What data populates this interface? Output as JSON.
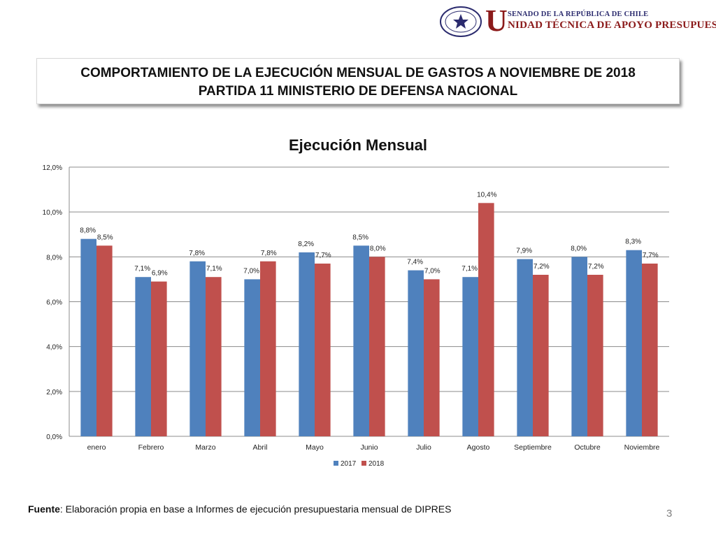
{
  "header": {
    "seal_text": "REPÚBLICA DE CHILE",
    "seal_subtext": "SENADO",
    "brand_initial": "U",
    "brand_top": "SENADO DE LA REPÚBLICA DE CHILE",
    "brand_bottom": "NIDAD TÉCNICA DE APOYO PRESUPUESTARIO"
  },
  "title": {
    "line1": "COMPORTAMIENTO DE LA EJECUCIÓN MENSUAL DE GASTOS A NOVIEMBRE DE 2018",
    "line2": "PARTIDA 11 MINISTERIO DE DEFENSA NACIONAL"
  },
  "chart_data": {
    "type": "bar",
    "title": "Ejecución Mensual",
    "categories": [
      "enero",
      "Febrero",
      "Marzo",
      "Abril",
      "Mayo",
      "Junio",
      "Julio",
      "Agosto",
      "Septiembre",
      "Octubre",
      "Noviembre"
    ],
    "series": [
      {
        "name": "2017",
        "color": "#4f81bd",
        "values": [
          8.8,
          7.1,
          7.8,
          7.0,
          8.2,
          8.5,
          7.4,
          7.1,
          7.9,
          8.0,
          8.3
        ],
        "labels": [
          "8,8%",
          "7,1%",
          "7,8%",
          "7,0%",
          "8,2%",
          "8,5%",
          "7,4%",
          "7,1%",
          "7,9%",
          "8,0%",
          "8,3%"
        ]
      },
      {
        "name": "2018",
        "color": "#c0504d",
        "values": [
          8.5,
          6.9,
          7.1,
          7.8,
          7.7,
          8.0,
          7.0,
          10.4,
          7.2,
          7.2,
          7.7
        ],
        "labels": [
          "8,5%",
          "6,9%",
          "7,1%",
          "7,8%",
          "7,7%",
          "8,0%",
          "7,0%",
          "10,4%",
          "7,2%",
          "7,2%",
          "7,7%"
        ]
      }
    ],
    "ylim": [
      0,
      12
    ],
    "yticks": [
      0,
      2,
      4,
      6,
      8,
      10,
      12
    ],
    "ytick_labels": [
      "0,0%",
      "2,0%",
      "4,0%",
      "6,0%",
      "8,0%",
      "10,0%",
      "12,0%"
    ],
    "grid": true,
    "legend_position": "bottom"
  },
  "footer": {
    "source_label": "Fuente",
    "source_text": ": Elaboración propia en base  a Informes de ejecución presupuestaria mensual de DIPRES"
  },
  "page_number": "3"
}
